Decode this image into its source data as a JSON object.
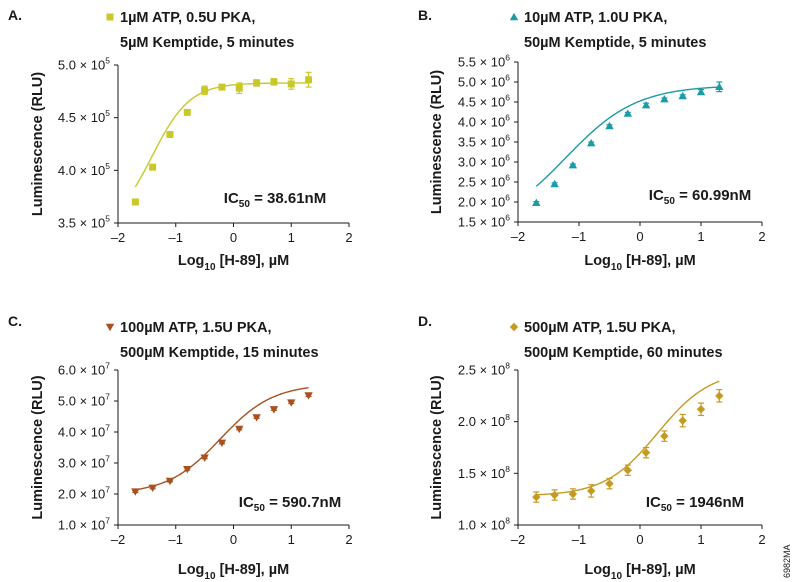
{
  "figure_code": "6982MA",
  "chart_data": [
    {
      "type": "scatter",
      "panel_label": "A.",
      "color": "#c8c82a",
      "marker": "square",
      "legend": [
        "1µM ATP, 0.5U PKA,",
        "5µM Kemptide, 5 minutes"
      ],
      "ylabel": "Luminescence (RLU)",
      "xlabel_main": "Log",
      "xlabel_sub": "10",
      "xlabel_rest": " [H-89], µM",
      "xlim": [
        -2,
        2
      ],
      "ylim": [
        3.5,
        5.0
      ],
      "xticks": [
        -2,
        -1,
        0,
        1,
        2
      ],
      "xtick_labels": [
        "–2",
        "–1",
        "0",
        "1",
        "2"
      ],
      "yticks": [
        3.5,
        4.0,
        4.5,
        5.0
      ],
      "ytick_mantissas": [
        "3.5",
        "4.0",
        "4.5",
        "5.0"
      ],
      "y_exponent": "5",
      "annotation": {
        "prefix": "IC",
        "sub": "50",
        "suffix": " = 38.61nM"
      },
      "x": [
        -1.7,
        -1.4,
        -1.1,
        -0.8,
        -0.5,
        -0.2,
        0.1,
        0.4,
        0.7,
        1.0,
        1.3
      ],
      "y": [
        3.7,
        4.03,
        4.34,
        4.55,
        4.76,
        4.79,
        4.78,
        4.83,
        4.84,
        4.82,
        4.86
      ],
      "y_err": [
        0.02,
        0.02,
        0.02,
        0.02,
        0.04,
        0.02,
        0.05,
        0.03,
        0.03,
        0.05,
        0.07
      ],
      "fit": {
        "bottom": 3.43,
        "top": 4.83,
        "logIC50": -1.4134,
        "hill": 1.32
      }
    },
    {
      "type": "scatter",
      "panel_label": "B.",
      "color": "#1a9ba6",
      "marker": "triangle-up",
      "legend": [
        "10µM ATP, 1.0U PKA,",
        "50µM Kemptide, 5 minutes"
      ],
      "ylabel": "Luminescence (RLU)",
      "xlabel_main": "Log",
      "xlabel_sub": "10",
      "xlabel_rest": " [H-89], µM",
      "xlim": [
        -2,
        2
      ],
      "ylim": [
        1.5,
        5.5
      ],
      "xticks": [
        -2,
        -1,
        0,
        1,
        2
      ],
      "xtick_labels": [
        "–2",
        "–1",
        "0",
        "1",
        "2"
      ],
      "yticks": [
        1.5,
        2.0,
        2.5,
        3.0,
        3.5,
        4.0,
        4.5,
        5.0,
        5.5
      ],
      "ytick_mantissas": [
        "1.5",
        "2.0",
        "2.5",
        "3.0",
        "3.5",
        "4.0",
        "4.5",
        "5.0",
        "5.5"
      ],
      "y_exponent": "6",
      "annotation": {
        "prefix": "IC",
        "sub": "50",
        "suffix": " = 60.99nM"
      },
      "x": [
        -1.7,
        -1.4,
        -1.1,
        -0.8,
        -0.5,
        -0.2,
        0.1,
        0.4,
        0.7,
        1.0,
        1.3
      ],
      "y": [
        1.98,
        2.45,
        2.92,
        3.47,
        3.9,
        4.21,
        4.42,
        4.57,
        4.65,
        4.75,
        4.88
      ],
      "y_err": [
        0.03,
        0.03,
        0.03,
        0.03,
        0.03,
        0.03,
        0.05,
        0.03,
        0.03,
        0.06,
        0.12
      ],
      "fit": {
        "bottom": 1.3,
        "top": 4.92,
        "logIC50": -1.2147,
        "hill": 0.75
      }
    },
    {
      "type": "scatter",
      "panel_label": "C.",
      "color": "#a8511e",
      "marker": "triangle-down",
      "legend": [
        "100µM ATP, 1.5U PKA,",
        "500µM Kemptide, 15 minutes"
      ],
      "ylabel": "Luminescence (RLU)",
      "xlabel_main": "Log",
      "xlabel_sub": "10",
      "xlabel_rest": " [H-89], µM",
      "xlim": [
        -2,
        2
      ],
      "ylim": [
        1.0,
        6.0
      ],
      "xticks": [
        -2,
        -1,
        0,
        1,
        2
      ],
      "xtick_labels": [
        "–2",
        "–1",
        "0",
        "1",
        "2"
      ],
      "yticks": [
        1.0,
        2.0,
        3.0,
        4.0,
        5.0,
        6.0
      ],
      "ytick_mantissas": [
        "1.0",
        "2.0",
        "3.0",
        "4.0",
        "5.0",
        "6.0"
      ],
      "y_exponent": "7",
      "annotation": {
        "prefix": "IC",
        "sub": "50",
        "suffix": " = 590.7nM"
      },
      "x": [
        -1.7,
        -1.4,
        -1.1,
        -0.8,
        -0.5,
        -0.2,
        0.1,
        0.4,
        0.7,
        1.0,
        1.3
      ],
      "y": [
        2.08,
        2.2,
        2.42,
        2.8,
        3.17,
        3.65,
        4.1,
        4.47,
        4.73,
        4.95,
        5.18
      ],
      "y_err": [
        0.03,
        0.03,
        0.03,
        0.03,
        0.03,
        0.03,
        0.03,
        0.03,
        0.03,
        0.03,
        0.03
      ],
      "fit": {
        "bottom": 2.0,
        "top": 5.55,
        "logIC50": -0.2287,
        "hill": 0.95
      }
    },
    {
      "type": "scatter",
      "panel_label": "D.",
      "color": "#c49a22",
      "marker": "diamond",
      "legend": [
        "500µM ATP, 1.5U PKA,",
        "500µM Kemptide, 60 minutes"
      ],
      "ylabel": "Luminescence (RLU)",
      "xlabel_main": "Log",
      "xlabel_sub": "10",
      "xlabel_rest": " [H-89], µM",
      "xlim": [
        -2,
        2
      ],
      "ylim": [
        1.0,
        2.5
      ],
      "xticks": [
        -2,
        -1,
        0,
        1,
        2
      ],
      "xtick_labels": [
        "–2",
        "–1",
        "0",
        "1",
        "2"
      ],
      "yticks": [
        1.0,
        1.5,
        2.0,
        2.5
      ],
      "ytick_mantissas": [
        "1.0",
        "1.5",
        "2.0",
        "2.5"
      ],
      "y_exponent": "8",
      "annotation": {
        "prefix": "IC",
        "sub": "50",
        "suffix": " = 1946nM"
      },
      "x": [
        -1.7,
        -1.4,
        -1.1,
        -0.8,
        -0.5,
        -0.2,
        0.1,
        0.4,
        0.7,
        1.0,
        1.3
      ],
      "y": [
        1.27,
        1.29,
        1.3,
        1.33,
        1.4,
        1.53,
        1.7,
        1.86,
        2.01,
        2.12,
        2.25
      ],
      "y_err": [
        0.05,
        0.05,
        0.05,
        0.06,
        0.05,
        0.05,
        0.05,
        0.05,
        0.06,
        0.06,
        0.06
      ],
      "fit": {
        "bottom": 1.28,
        "top": 2.5,
        "logIC50": 0.2892,
        "hill": 1.0
      }
    }
  ]
}
